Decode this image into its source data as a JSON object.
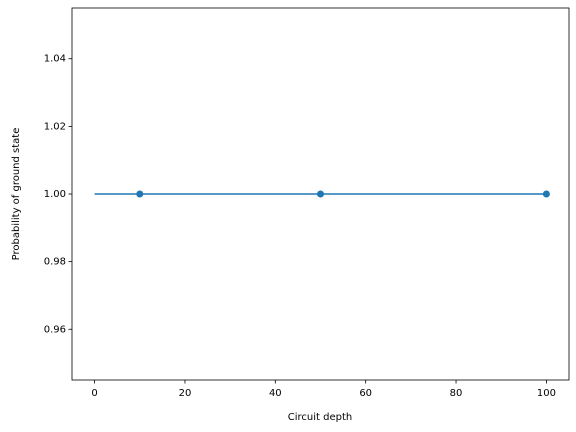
{
  "chart_data": {
    "type": "line",
    "xlabel": "Circuit depth",
    "ylabel": "Probability of ground state",
    "series": [
      {
        "color": "#1f77b4",
        "x": [
          0,
          100
        ],
        "values": [
          1,
          1
        ],
        "style": "line"
      },
      {
        "color": "#1f77b4",
        "x": [
          10,
          50,
          100
        ],
        "values": [
          1,
          1,
          1
        ],
        "style": "markers"
      }
    ],
    "xlim": [
      -5,
      105
    ],
    "ylim": [
      0.945,
      1.055
    ],
    "xticks": [
      0,
      20,
      40,
      60,
      80,
      100
    ],
    "yticks": [
      0.96,
      0.98,
      {
        "value": 1,
        "label": "1.00"
      },
      1.02,
      1.04
    ],
    "grid": false
  }
}
